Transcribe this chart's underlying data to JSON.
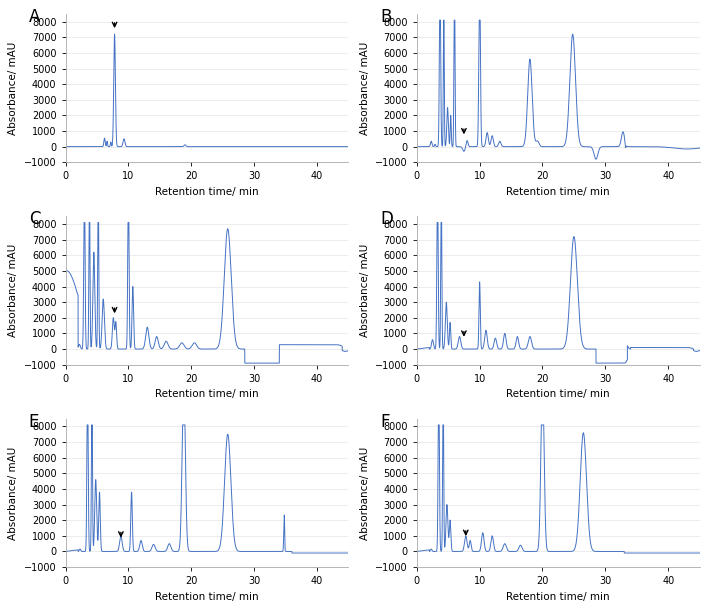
{
  "line_color": "#4472C4",
  "line_width": 0.7,
  "ylim": [
    -1000,
    8500
  ],
  "yticks": [
    -1000,
    0,
    1000,
    2000,
    3000,
    4000,
    5000,
    6000,
    7000,
    8000
  ],
  "xlim": [
    0,
    45
  ],
  "xticks": [
    0,
    10,
    20,
    30,
    40
  ],
  "xlabel": "Retention time/ min",
  "ylabel": "Absorbance/ mAU",
  "bg_color": "#ffffff",
  "subplot_labels": [
    "A",
    "B",
    "C",
    "D",
    "E",
    "F"
  ],
  "label_fontsize": 12,
  "axis_fontsize": 7.5,
  "tick_fontsize": 7
}
